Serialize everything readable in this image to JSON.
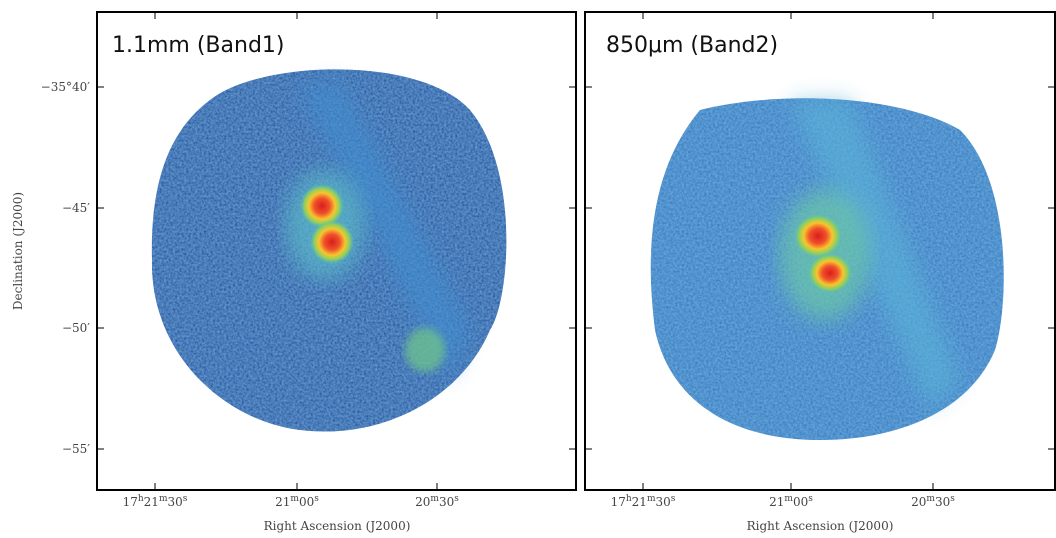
{
  "figure": {
    "ylabel": "Declination (J2000)",
    "yticks": [
      "−35°40′",
      "−45′",
      "−50′",
      "−55′"
    ],
    "panels": [
      {
        "label": "1.1mm (Band1)",
        "xlabel": "Right Ascension (J2000)",
        "xticks": [
          [
            "17",
            "h",
            "21",
            "m",
            "30",
            "s"
          ],
          [
            "21",
            "m",
            "00",
            "s"
          ],
          [
            "20",
            "m",
            "30",
            "s"
          ]
        ]
      },
      {
        "label": "850μm (Band2)",
        "xlabel": "Right Ascension (J2000)",
        "xticks": [
          [
            "17",
            "h",
            "21",
            "m",
            "30",
            "s"
          ],
          [
            "21",
            "m",
            "00",
            "s"
          ],
          [
            "20",
            "m",
            "30",
            "s"
          ]
        ]
      }
    ]
  }
}
